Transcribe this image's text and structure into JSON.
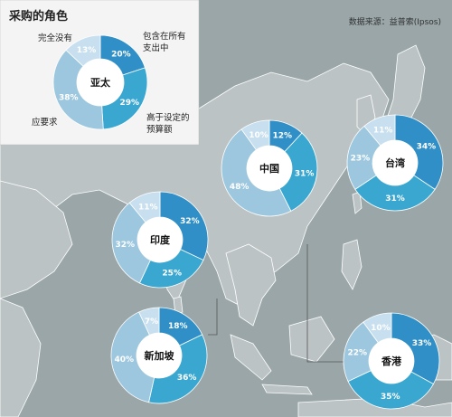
{
  "title": "采购的角色",
  "source": "数据来源：益普索(Ipsos)",
  "legend": {
    "center": "亚太",
    "labels": [
      "完全没有",
      "包含在所有支出中",
      "高于设定的预算额",
      "应要求"
    ]
  },
  "colors": {
    "sea": "#9aa6a8",
    "land": "#bcc3c4",
    "border": "#ffffff",
    "panel": "#f4f4f4",
    "wholly": "#2f8fc6",
    "above": "#3aa7d1",
    "request": "#9cc7df",
    "none": "#c7dfee"
  },
  "chart_data": {
    "type": "pie",
    "categories": [
      "包含在所有支出中",
      "高于设定的预算额",
      "应要求",
      "完全没有"
    ],
    "series": [
      {
        "name": "亚太",
        "values": [
          20,
          29,
          38,
          13
        ]
      },
      {
        "name": "中国",
        "values": [
          12,
          31,
          48,
          10
        ]
      },
      {
        "name": "台湾",
        "values": [
          34,
          31,
          23,
          11
        ]
      },
      {
        "name": "印度",
        "values": [
          32,
          25,
          32,
          11
        ]
      },
      {
        "name": "新加坡",
        "values": [
          18,
          36,
          40,
          7
        ]
      },
      {
        "name": "香港",
        "values": [
          33,
          35,
          22,
          10
        ]
      }
    ]
  }
}
